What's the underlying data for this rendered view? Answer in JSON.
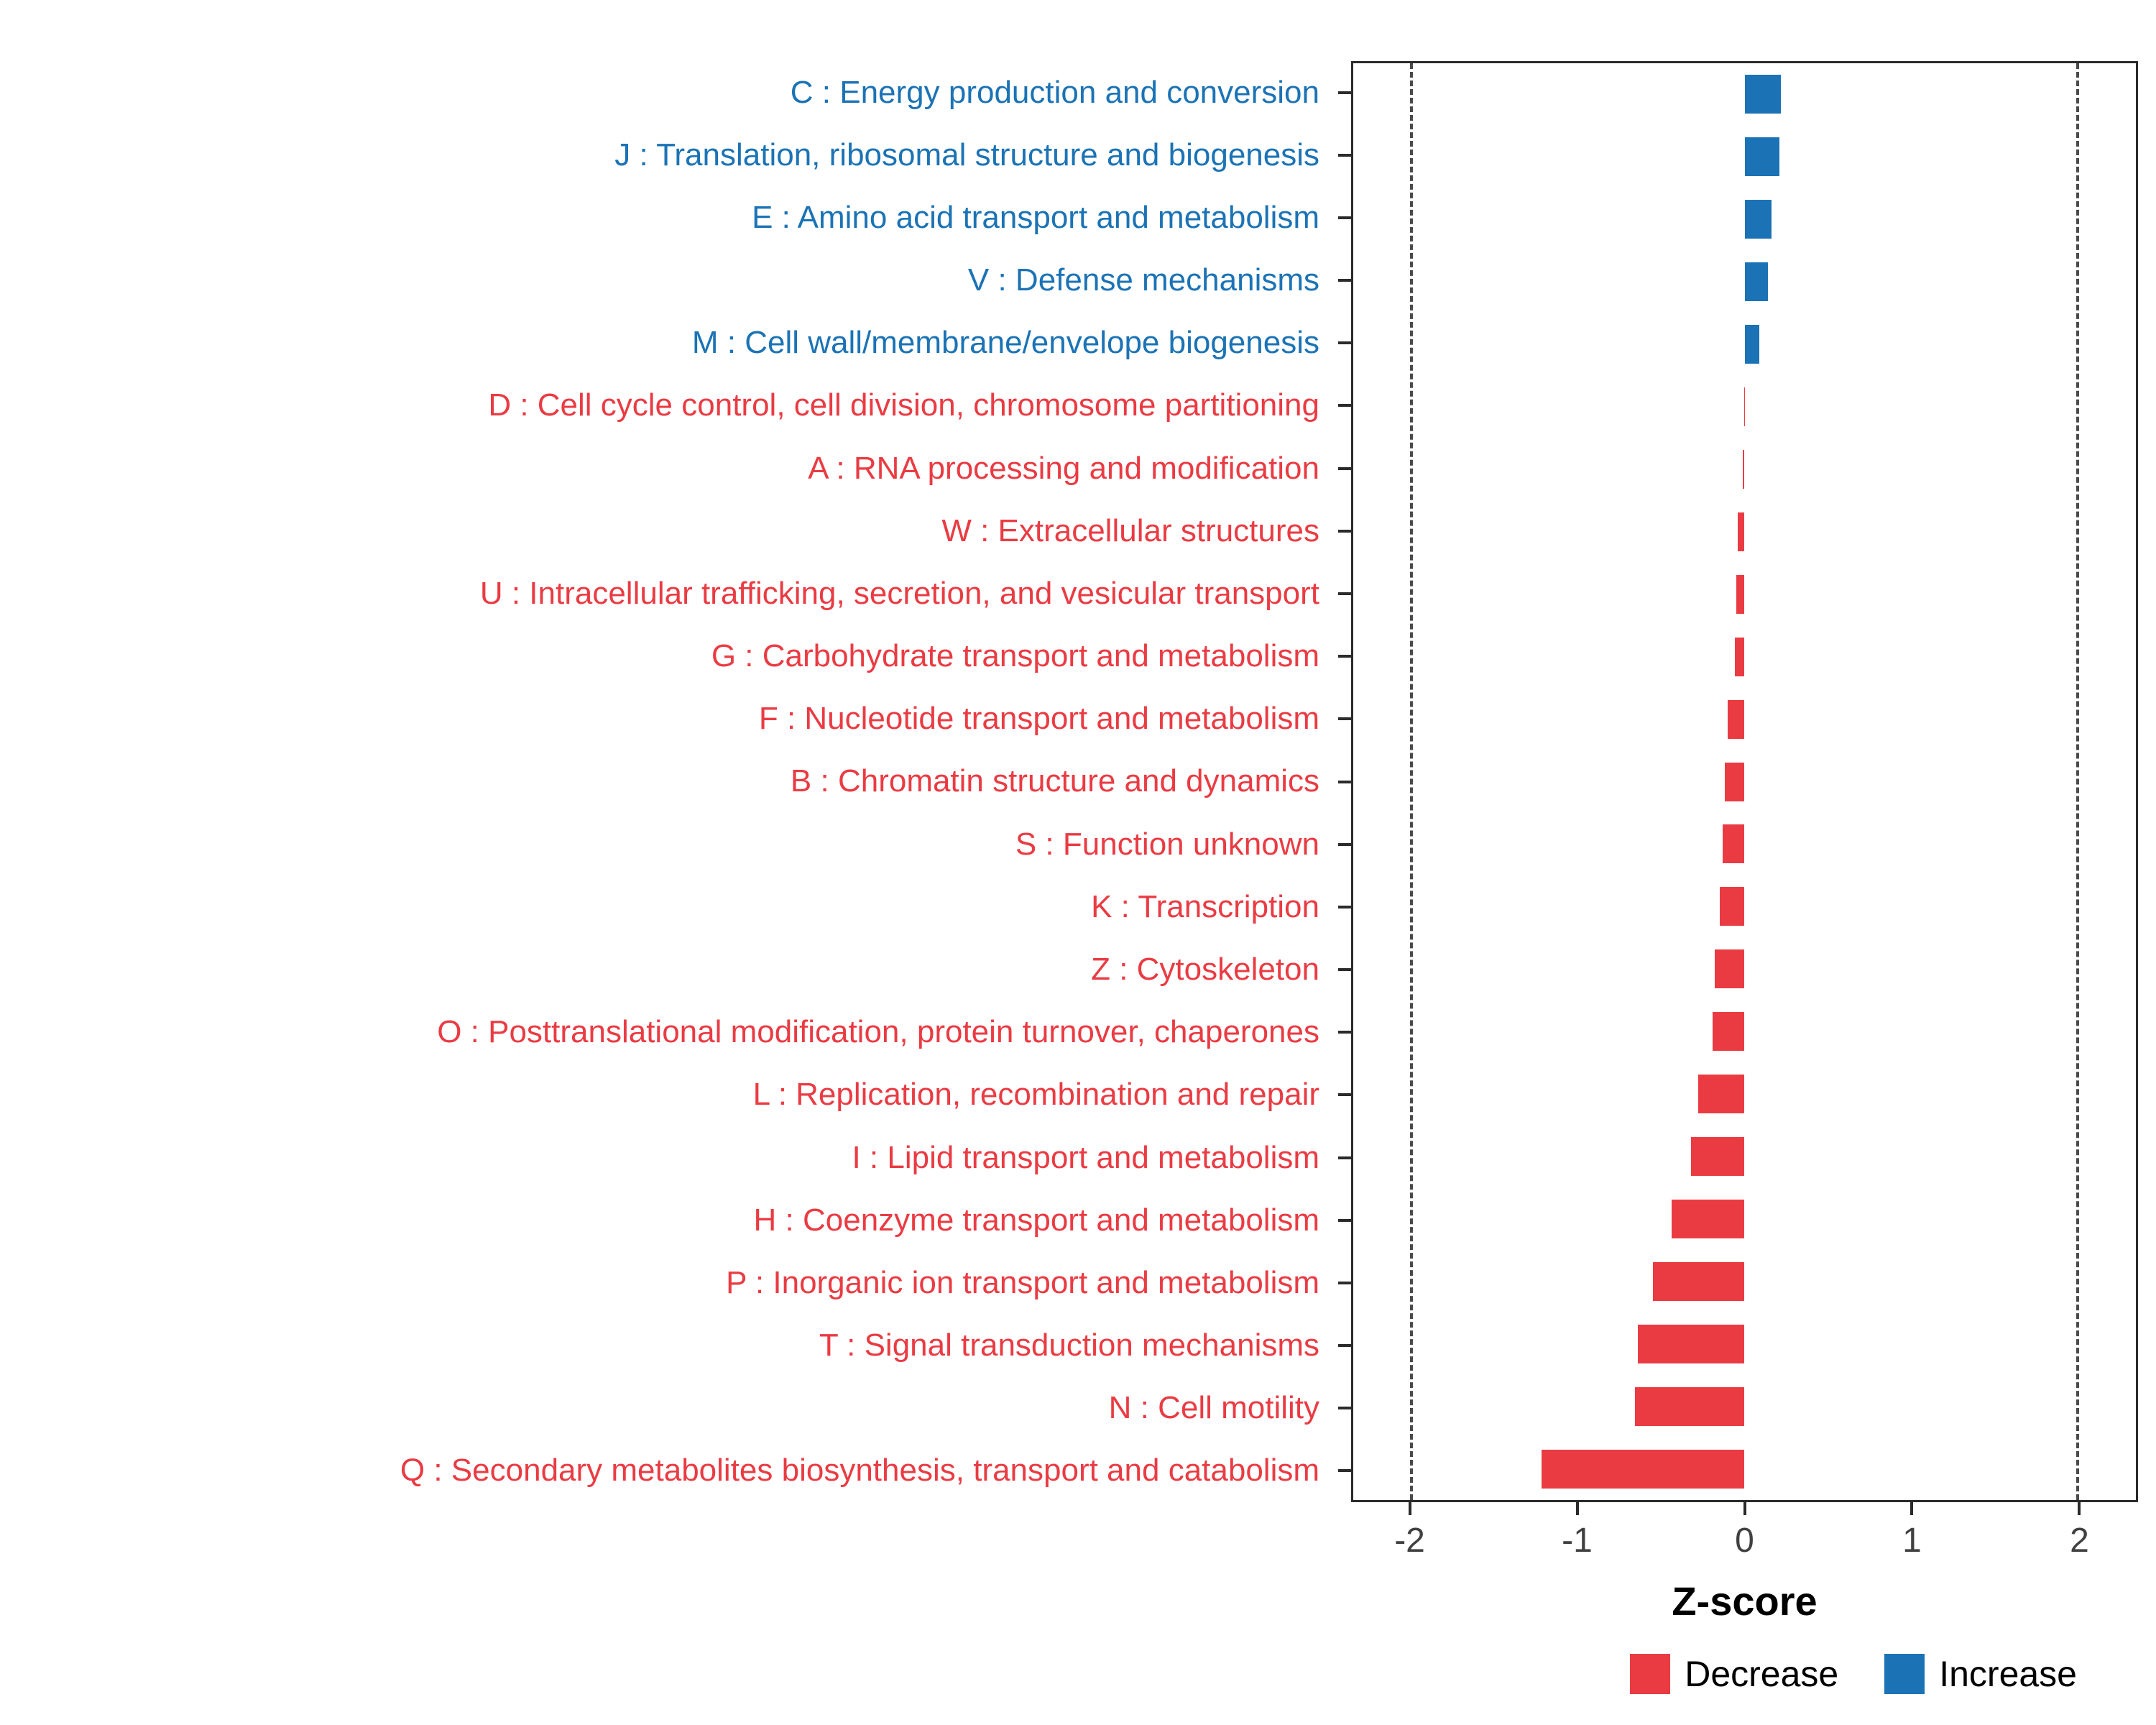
{
  "colors": {
    "increase": "#1B73B5",
    "decrease": "#EA3B43",
    "axis_text": "#404040",
    "panel_border": "#2b2b2b",
    "dashed_line": "#4a4a4a"
  },
  "chart_data": {
    "type": "bar",
    "orientation": "horizontal",
    "title": "",
    "xlabel": "Z-score",
    "ylabel": "",
    "xlim": [
      -2.35,
      2.35
    ],
    "xticks": [
      -2,
      -1,
      0,
      1,
      2
    ],
    "dashed_lines_x": [
      -2,
      2
    ],
    "grid": false,
    "legend_position": "bottom-right",
    "categories": [
      "C : Energy production and conversion",
      "J : Translation, ribosomal structure and biogenesis",
      "E : Amino acid transport and metabolism",
      "V : Defense mechanisms",
      "M : Cell wall/membrane/envelope biogenesis",
      "D : Cell cycle control, cell division, chromosome partitioning",
      "A : RNA processing and modification",
      "W : Extracellular structures",
      "U : Intracellular trafficking, secretion, and vesicular transport",
      "G : Carbohydrate transport and metabolism",
      "F : Nucleotide transport and metabolism",
      "B : Chromatin structure and dynamics",
      "S : Function unknown",
      "K : Transcription",
      "Z : Cytoskeleton",
      "O : Posttranslational modification, protein turnover, chaperones",
      "L : Replication, recombination and repair",
      "I : Lipid transport and metabolism",
      "H : Coenzyme transport and metabolism",
      "P : Inorganic ion transport and metabolism",
      "T : Signal transduction mechanisms",
      "N : Cell motility",
      "Q : Secondary metabolites biosynthesis, transport and catabolism"
    ],
    "values": [
      0.22,
      0.21,
      0.16,
      0.14,
      0.09,
      -0.002,
      -0.012,
      -0.04,
      -0.05,
      -0.06,
      -0.1,
      -0.12,
      -0.13,
      -0.15,
      -0.18,
      -0.19,
      -0.28,
      -0.32,
      -0.44,
      -0.55,
      -0.64,
      -0.66,
      -1.22
    ],
    "groups": [
      "increase",
      "increase",
      "increase",
      "increase",
      "increase",
      "decrease",
      "decrease",
      "decrease",
      "decrease",
      "decrease",
      "decrease",
      "decrease",
      "decrease",
      "decrease",
      "decrease",
      "decrease",
      "decrease",
      "decrease",
      "decrease",
      "decrease",
      "decrease",
      "decrease",
      "decrease"
    ],
    "legend": [
      {
        "label": "Decrease",
        "color_key": "decrease"
      },
      {
        "label": "Increase",
        "color_key": "increase"
      }
    ]
  }
}
